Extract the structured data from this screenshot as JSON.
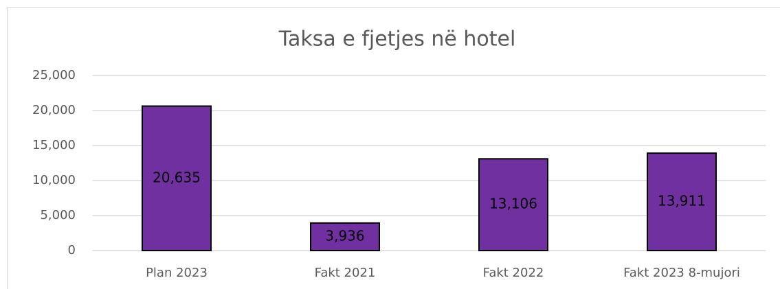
{
  "chart_data": {
    "type": "bar",
    "title": "Taksa e fjetjes në hotel",
    "categories": [
      "Plan 2023",
      "Fakt 2021",
      "Fakt 2022",
      "Fakt 2023 8-mujori"
    ],
    "values": [
      20635,
      3936,
      13106,
      13911
    ],
    "value_labels": [
      "20,635",
      "3,936",
      "13,106",
      "13,911"
    ],
    "color": "#7030a0",
    "ylim": [
      0,
      25000
    ],
    "yticks": [
      0,
      {
        "value": 5000,
        "label": "5,000"
      },
      {
        "value": 10000,
        "label": "10,000"
      },
      {
        "value": 15000,
        "label": "15,000"
      },
      {
        "value": 20000,
        "label": "20,000"
      },
      {
        "value": 25000,
        "label": "25,000"
      }
    ],
    "grid": true
  }
}
